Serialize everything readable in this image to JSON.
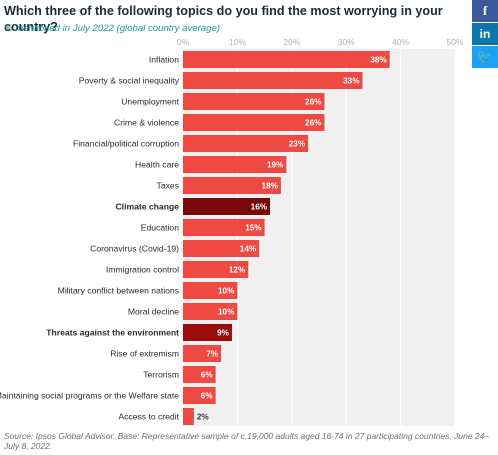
{
  "header": {
    "title": "Which three of the following topics do you find the most worrying in your country?",
    "subtitle": "% mentioned in July 2022 (global country average)"
  },
  "social": {
    "facebook_icon": "facebook-icon",
    "linkedin_icon": "linkedin-icon",
    "twitter_icon": "twitter-icon",
    "facebook_glyph": "f",
    "linkedin_glyph": "in",
    "twitter_glyph": "🐦"
  },
  "footer": {
    "source": "Source: Ipsos Global Advisor. Base: Representative sample of c.19,000 adults aged 16-74 in 27 participating countries, June 24–July 8, 2022."
  },
  "chart_data": {
    "type": "bar",
    "orientation": "horizontal",
    "categories": [
      "Inflation",
      "Poverty & social inequality",
      "Unemployment",
      "Crime & violence",
      "Financial/political corruption",
      "Health care",
      "Taxes",
      "Climate change",
      "Education",
      "Coronavirus (Covid-19)",
      "Immigration control",
      "Military conflict between nations",
      "Moral decline",
      "Threats against the environment",
      "Rise of extremism",
      "Terrorism",
      "Maintaining social programs or the Welfare state",
      "Access to credit"
    ],
    "values": [
      38,
      33,
      26,
      26,
      23,
      19,
      18,
      16,
      15,
      14,
      12,
      10,
      10,
      9,
      7,
      6,
      6,
      2
    ],
    "data_labels": [
      "38%",
      "33%",
      "26%",
      "26%",
      "23%",
      "19%",
      "18%",
      "16%",
      "15%",
      "14%",
      "12%",
      "10%",
      "10%",
      "9%",
      "7%",
      "6%",
      "6%",
      "2%"
    ],
    "highlighted": [
      "Climate change",
      "Threats against the environment"
    ],
    "xlim": [
      0,
      50
    ],
    "ticks": [
      0,
      10,
      20,
      30,
      40,
      50
    ],
    "tick_labels": [
      "0%",
      "10%",
      "20%",
      "30%",
      "40%",
      "50%"
    ],
    "grid": true,
    "colors": {
      "bar": "#ee4a43",
      "bar_highlight_climate": "#7a0a0a",
      "bar_highlight_environment": "#9a0c0c",
      "plot_bg": "#f0f0f0",
      "grid": "#ffffff",
      "tick_text": "#b0b0b0",
      "label_text": "#2a2a2a"
    }
  }
}
